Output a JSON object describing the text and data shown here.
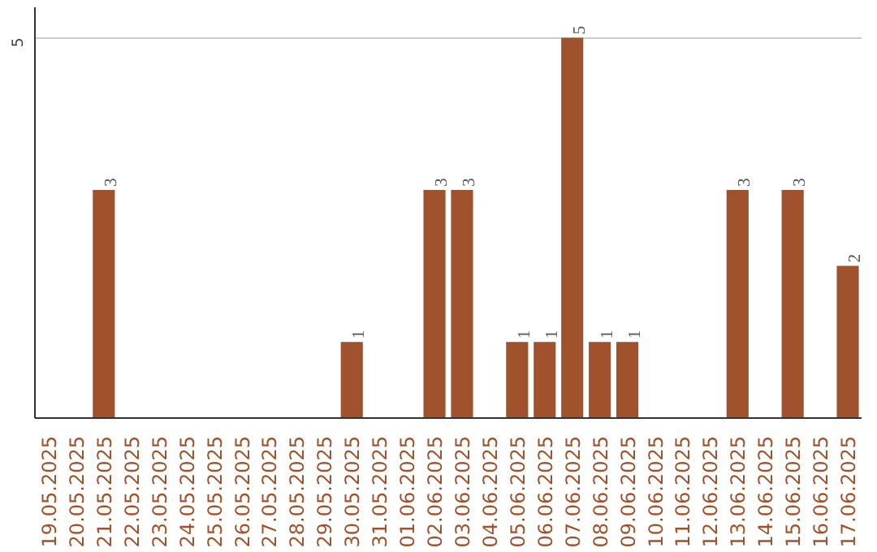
{
  "chart_data": {
    "type": "bar",
    "categories": [
      "19.05.2025",
      "20.05.2025",
      "21.05.2025",
      "22.05.2025",
      "23.05.2025",
      "24.05.2025",
      "25.05.2025",
      "26.05.2025",
      "27.05.2025",
      "28.05.2025",
      "29.05.2025",
      "30.05.2025",
      "31.05.2025",
      "01.06.2025",
      "02.06.2025",
      "03.06.2025",
      "04.06.2025",
      "05.06.2025",
      "06.06.2025",
      "07.06.2025",
      "08.06.2025",
      "09.06.2025",
      "10.06.2025",
      "11.06.2025",
      "12.06.2025",
      "13.06.2025",
      "14.06.2025",
      "15.06.2025",
      "16.06.2025",
      "17.06.2025"
    ],
    "values": [
      0,
      0,
      3,
      0,
      0,
      0,
      0,
      0,
      0,
      0,
      0,
      1,
      0,
      0,
      3,
      3,
      0,
      1,
      1,
      5,
      1,
      1,
      0,
      0,
      0,
      3,
      0,
      3,
      0,
      2
    ],
    "value_labels": [
      null,
      null,
      "3",
      null,
      null,
      null,
      null,
      null,
      null,
      null,
      null,
      "1",
      null,
      null,
      "3",
      "3",
      null,
      "1",
      "1",
      "5",
      "1",
      "1",
      null,
      null,
      null,
      "3",
      null,
      "3",
      null,
      "2"
    ],
    "color": "#a0522d",
    "ylim": [
      0,
      5.4
    ],
    "yticks": [
      5
    ],
    "grid": "y"
  }
}
